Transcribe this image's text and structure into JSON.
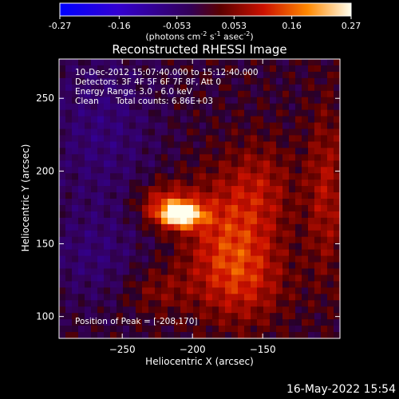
{
  "chart_data": {
    "type": "heatmap",
    "title": "Reconstructed RHESSI Image",
    "xlabel": "Heliocentric X (arcsec)",
    "ylabel": "Heliocentric Y (arcsec)",
    "xlim": [
      -295,
      -95
    ],
    "ylim": [
      85,
      277
    ],
    "x_ticks": [
      -250,
      -200,
      -150
    ],
    "y_ticks": [
      100,
      150,
      200,
      250
    ],
    "colorbar": {
      "range": [
        -0.27,
        0.27
      ],
      "ticks": [
        -0.27,
        -0.16,
        -0.053,
        0.053,
        0.16,
        0.27
      ],
      "tick_labels": [
        "-0.27",
        "-0.16",
        "-0.053",
        "0.053",
        "0.16",
        "0.27"
      ],
      "unit_text": "(photons cm",
      "unit_exp1": "-2",
      "unit_mid1": " s",
      "unit_exp2": "-1",
      "unit_mid2": " asec",
      "unit_exp3": "-2",
      "unit_end": ")"
    },
    "peak": [
      -208,
      170
    ],
    "sources": [
      {
        "x": -208,
        "y": 170,
        "sx": 11,
        "sy": 6,
        "amp": 0.27
      },
      {
        "x": -220,
        "y": 178,
        "sx": 14,
        "sy": 10,
        "amp": 0.1
      },
      {
        "x": -175,
        "y": 160,
        "sx": 22,
        "sy": 28,
        "amp": 0.1
      },
      {
        "x": -165,
        "y": 125,
        "sx": 22,
        "sy": 22,
        "amp": 0.09
      },
      {
        "x": -150,
        "y": 190,
        "sx": 16,
        "sy": 22,
        "amp": 0.06
      },
      {
        "x": -105,
        "y": 185,
        "sx": 10,
        "sy": 40,
        "amp": 0.08
      },
      {
        "x": -225,
        "y": 118,
        "sx": 18,
        "sy": 12,
        "amp": 0.05
      },
      {
        "x": -265,
        "y": 230,
        "sx": 28,
        "sy": 40,
        "amp": -0.06
      },
      {
        "x": -270,
        "y": 140,
        "sx": 25,
        "sy": 25,
        "amp": -0.05
      }
    ]
  },
  "annotations": {
    "time_range": "10-Dec-2012 15:07:40.000 to 15:12:40.000",
    "detectors": "Detectors: 3F 4F 5F 6F 7F 8F, Att 0",
    "energy_range": "Energy Range: 3.0 - 6.0 keV",
    "method": "Clean",
    "total_counts": "Total counts: 6.86E+03",
    "peak_text": "Position of Peak = [-208,170]"
  },
  "footer_date": "16-May-2022 15:54"
}
